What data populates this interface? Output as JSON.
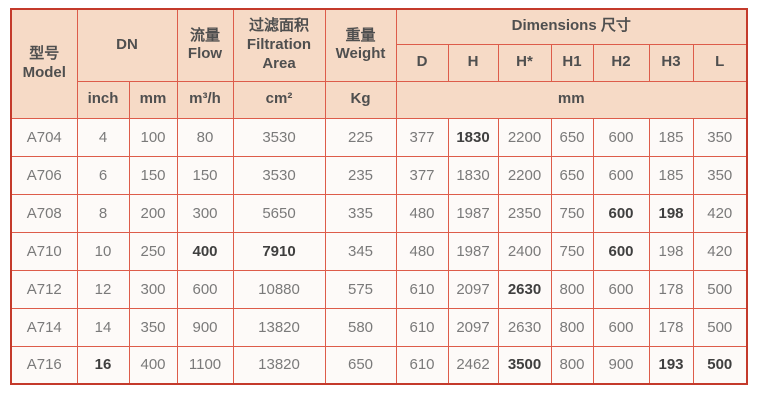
{
  "table": {
    "header": {
      "model_zh": "型号",
      "model_en": "Model",
      "dn": "DN",
      "flow_zh": "流量",
      "flow_en": "Flow",
      "filtration_zh": "过滤面积",
      "filtration_en": "Filtration Area",
      "weight_zh": "重量",
      "weight_en": "Weight",
      "dimensions": "Dimensions 尺寸",
      "dim_cols": [
        "D",
        "H",
        "H*",
        "H1",
        "H2",
        "H3",
        "L"
      ],
      "units": {
        "inch": "inch",
        "mm": "mm",
        "flow": "m³/h",
        "area": "cm²",
        "weight": "Kg",
        "dims": "mm"
      }
    },
    "rows": [
      {
        "values": [
          "A704",
          "4",
          "100",
          "80",
          "3530",
          "225",
          "377",
          "1830",
          "2200",
          "650",
          "600",
          "185",
          "350"
        ],
        "bold": [
          7
        ]
      },
      {
        "values": [
          "A706",
          "6",
          "150",
          "150",
          "3530",
          "235",
          "377",
          "1830",
          "2200",
          "650",
          "600",
          "185",
          "350"
        ],
        "bold": []
      },
      {
        "values": [
          "A708",
          "8",
          "200",
          "300",
          "5650",
          "335",
          "480",
          "1987",
          "2350",
          "750",
          "600",
          "198",
          "420"
        ],
        "bold": [
          10,
          11
        ]
      },
      {
        "values": [
          "A710",
          "10",
          "250",
          "400",
          "7910",
          "345",
          "480",
          "1987",
          "2400",
          "750",
          "600",
          "198",
          "420"
        ],
        "bold": [
          3,
          4,
          10
        ]
      },
      {
        "values": [
          "A712",
          "12",
          "300",
          "600",
          "10880",
          "575",
          "610",
          "2097",
          "2630",
          "800",
          "600",
          "178",
          "500"
        ],
        "bold": [
          8
        ]
      },
      {
        "values": [
          "A714",
          "14",
          "350",
          "900",
          "13820",
          "580",
          "610",
          "2097",
          "2630",
          "800",
          "600",
          "178",
          "500"
        ],
        "bold": []
      },
      {
        "values": [
          "A716",
          "16",
          "400",
          "1100",
          "13820",
          "650",
          "610",
          "2462",
          "3500",
          "800",
          "900",
          "193",
          "500"
        ],
        "bold": [
          1,
          8,
          11,
          12
        ]
      }
    ]
  },
  "colors": {
    "header_bg": "#f6dac6",
    "cell_bg": "#fdfaf8",
    "border_dark": "#c43a2b",
    "border_inner": "#dd5c4a",
    "border_light": "#ef9488",
    "header_text": "#4f4f4f",
    "cell_text": "#7a7a7a"
  }
}
